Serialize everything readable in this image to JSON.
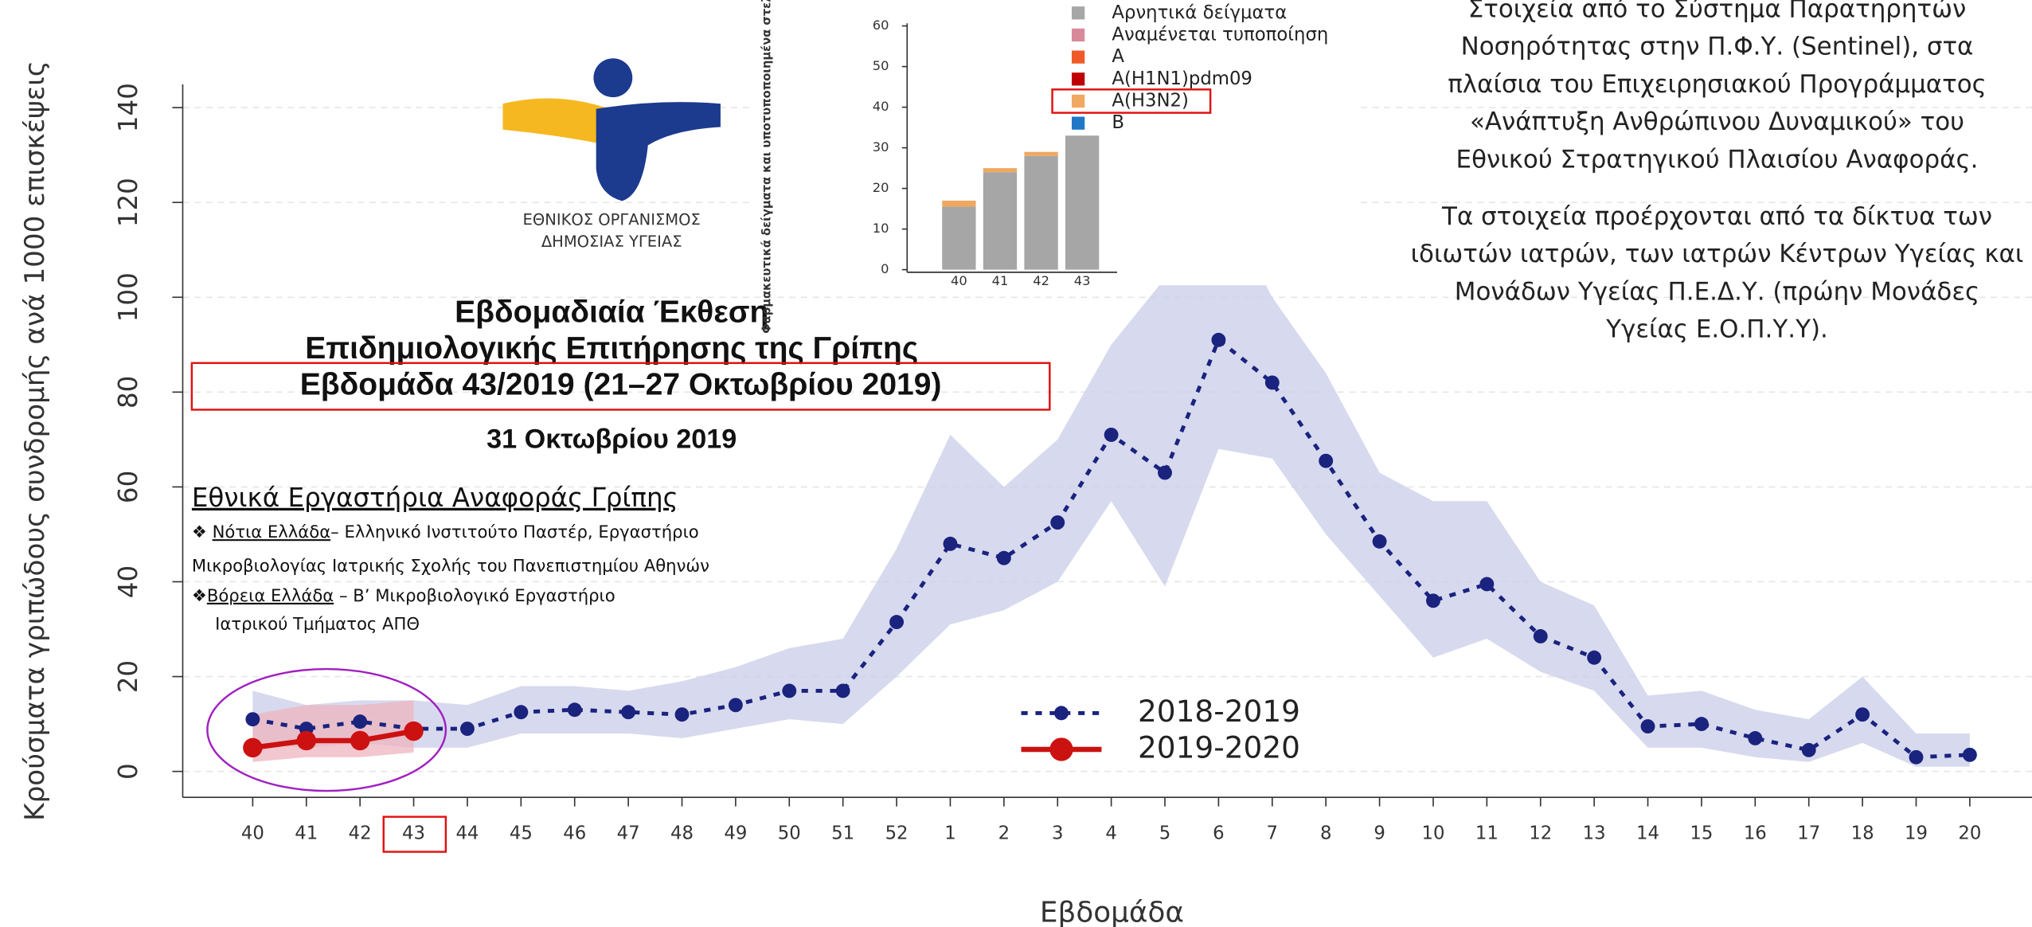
{
  "chart_data": [
    {
      "type": "line",
      "x_label": "Εβδομάδα",
      "y_label": "Κρούσματα γριπώδους συνδρομής ανά 1000 επισκέψεις",
      "categories": [
        "40",
        "41",
        "42",
        "43",
        "44",
        "45",
        "46",
        "47",
        "48",
        "49",
        "50",
        "51",
        "52",
        "1",
        "2",
        "3",
        "4",
        "5",
        "6",
        "7",
        "8",
        "9",
        "10",
        "11",
        "12",
        "13",
        "14",
        "15",
        "16",
        "17",
        "18",
        "19",
        "20"
      ],
      "ylim": [
        0,
        140
      ],
      "yticks": [
        0,
        20,
        40,
        60,
        80,
        100,
        120,
        140
      ],
      "grid": true,
      "series": [
        {
          "name": "2018-2019",
          "color": "#1a237e",
          "band_color": "#c9cde8",
          "values": [
            11,
            9,
            10.5,
            9,
            9,
            12.5,
            13,
            12.5,
            12,
            14,
            17,
            17,
            31.5,
            48,
            45,
            52.5,
            71,
            63,
            91,
            82,
            65.5,
            48.5,
            36,
            39.5,
            28.5,
            24,
            9.5,
            10,
            7,
            4.5,
            12,
            3,
            3.5
          ],
          "lower": [
            6,
            5,
            6,
            5,
            5,
            8,
            8,
            8,
            7,
            9,
            11,
            10,
            20,
            31,
            34,
            40,
            57,
            39,
            68,
            66,
            50,
            37,
            24,
            28,
            21,
            17,
            5,
            5,
            3,
            2,
            6,
            1,
            1
          ],
          "upper": [
            17,
            14,
            15,
            15,
            14,
            18,
            18,
            17,
            19,
            22,
            26,
            28,
            47,
            71,
            60,
            70,
            90,
            104,
            122,
            100,
            84,
            63,
            57,
            57,
            40,
            35,
            16,
            17,
            13,
            11,
            20,
            8,
            8
          ]
        },
        {
          "name": "2019-2020",
          "color": "#cc1111",
          "band_color": "#eeb4bf",
          "values": [
            5,
            6.5,
            6.5,
            8.5,
            null,
            null,
            null,
            null,
            null,
            null,
            null,
            null,
            null,
            null,
            null,
            null,
            null,
            null,
            null,
            null,
            null,
            null,
            null,
            null,
            null,
            null,
            null,
            null,
            null,
            null,
            null,
            null,
            null
          ],
          "lower": [
            2,
            3,
            3,
            4,
            null,
            null,
            null,
            null,
            null,
            null,
            null,
            null,
            null,
            null,
            null,
            null,
            null,
            null,
            null,
            null,
            null,
            null,
            null,
            null,
            null,
            null,
            null,
            null,
            null,
            null,
            null,
            null,
            null
          ],
          "upper": [
            12,
            14,
            14,
            15,
            null,
            null,
            null,
            null,
            null,
            null,
            null,
            null,
            null,
            null,
            null,
            null,
            null,
            null,
            null,
            null,
            null,
            null,
            null,
            null,
            null,
            null,
            null,
            null,
            null,
            null,
            null,
            null,
            null
          ]
        }
      ]
    },
    {
      "type": "bar",
      "stacked": true,
      "y_label": "Φαρμακευτικά δείγματα και υποτυποποιημένα στελέχη",
      "categories": [
        "40",
        "41",
        "42",
        "43"
      ],
      "ylim": [
        0,
        60
      ],
      "yticks": [
        0,
        10,
        20,
        30,
        40,
        50,
        60
      ],
      "series": [
        {
          "name": "Αρνητικά δείγματα",
          "color": "#a6a6a6",
          "values": [
            15.5,
            24,
            28,
            33
          ]
        },
        {
          "name": "Αναμένεται τυποποίηση",
          "color": "#d88a9a",
          "values": [
            0,
            0,
            0,
            0
          ]
        },
        {
          "name": "A",
          "color": "#f05a28",
          "values": [
            0,
            0,
            0,
            0
          ]
        },
        {
          "name": "A(H1N1)pdm09",
          "color": "#c00000",
          "values": [
            0,
            0,
            0,
            0
          ]
        },
        {
          "name": "A(H3N2)",
          "color": "#f0a860",
          "values": [
            1.5,
            1,
            1,
            0
          ]
        },
        {
          "name": "B",
          "color": "#1f77c8",
          "values": [
            0,
            0,
            0,
            0
          ]
        }
      ]
    }
  ],
  "logo": [
    "ΕΘΝΙΚΟΣ ΟΡΓΑΝΙΣΜΟΣ",
    "ΔΗΜΟΣΙΑΣ ΥΓΕΙΑΣ"
  ],
  "report": [
    "Εβδομαδιαία Έκθεση",
    "Επιδημιολογικής Επιτήρησης της Γρίπης",
    "Εβδομάδα 43/2019 (21–27 Οκτωβρίου 2019)",
    "31 Οκτωβρίου 2019"
  ],
  "labs": {
    "title": "Εθνικά Εργαστήρια Αναφοράς Γρίπης",
    "lines": [
      [
        "❖ ",
        "Νότια Ελλάδα",
        "– Ελληνικό Ινστιτούτο Παστέρ,  Εργαστήριο"
      ],
      [
        "Μικροβιολογίας Ιατρικής Σχολής        του Πανεπιστημίου Αθηνών"
      ],
      [
        "❖",
        "Βόρεια Ελλάδα",
        " – Β’ Μικροβιολογικό Εργαστήριο"
      ],
      [
        "Ιατρικού Τμήματος ΑΠΘ"
      ]
    ]
  },
  "notes": [
    [
      "Στοιχεία από το Σύστημα Παρατηρητών",
      "Νοσηρότητας στην Π.Φ.Υ. (Sentinel), στα",
      "πλαίσια του Επιχειρησιακού Προγράμματος",
      "«Ανάπτυξη Ανθρώπινου Δυναμικού» του",
      "Εθνικού Στρατηγικού Πλαισίου Αναφοράς."
    ],
    [
      "Τα στοιχεία προέρχονται από τα δίκτυα των",
      "ιδιωτών ιατρών, των ιατρών Κέντρων Υγείας και",
      "Μονάδων Υγείας Π.Ε.Δ.Υ. (πρώην Μονάδες",
      "Υγείας Ε.Ο.Π.Υ.Υ)."
    ]
  ]
}
